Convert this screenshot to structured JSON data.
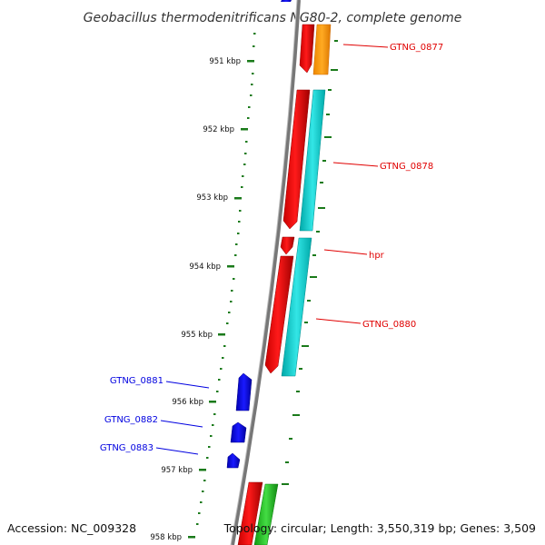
{
  "title": "Geobacillus thermodenitrificans NG80-2, complete genome",
  "accession": "Accession: NC_009328",
  "topology": "Topology: circular; Length: 3,550,319 bp; Genes: 3,509",
  "ticks": [
    {
      "label": "951 kbp"
    },
    {
      "label": "952 kbp"
    },
    {
      "label": "953 kbp"
    },
    {
      "label": "954 kbp"
    },
    {
      "label": "955 kbp"
    },
    {
      "label": "956 kbp"
    },
    {
      "label": "957 kbp"
    },
    {
      "label": "958 kbp"
    }
  ],
  "genes": {
    "gtng_0877": "GTNG_0877",
    "gtng_0878": "GTNG_0878",
    "hpr": "hpr",
    "gtng_0880": "GTNG_0880",
    "gtng_0881": "GTNG_0881",
    "gtng_0882": "GTNG_0882",
    "gtng_0883": "GTNG_0883"
  },
  "colors": {
    "forward_gene": "#e00000",
    "reverse_gene": "#0000e0",
    "orange_feature": "#ff9900",
    "cyan_feature": "#00cccc",
    "green_feature": "#22bb22",
    "backbone": "#777777",
    "tick": "#1a7a1a"
  }
}
